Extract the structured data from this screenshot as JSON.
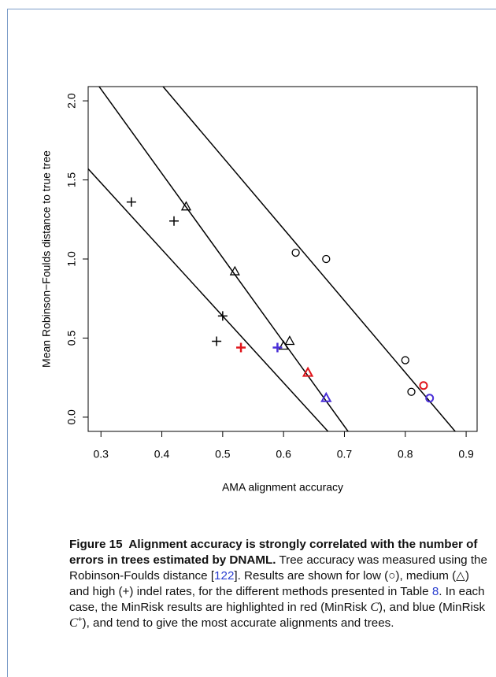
{
  "chart_data": {
    "type": "scatter",
    "xlabel": "AMA alignment accuracy",
    "ylabel": "Mean Robinson−Foulds distance to true tree",
    "xlim": [
      0.279,
      0.918
    ],
    "ylim": [
      -0.09,
      2.09
    ],
    "xticks": [
      0.3,
      0.4,
      0.5,
      0.6,
      0.7,
      0.8,
      0.9
    ],
    "yticks": [
      {
        "value": 0,
        "label": "0.0"
      },
      0.5,
      {
        "value": 1,
        "label": "1.0"
      },
      1.5,
      {
        "value": 2,
        "label": "2.0"
      }
    ],
    "series": [
      {
        "marker": "circle",
        "color": "#000000",
        "x": [
          0.62,
          0.67,
          0.8,
          0.81
        ],
        "y": [
          1.04,
          1.0,
          0.36,
          0.16
        ]
      },
      {
        "marker": "circle",
        "color": "#e0161c",
        "x": [
          0.83
        ],
        "y": [
          0.2
        ]
      },
      {
        "marker": "circle",
        "color": "#4a2fd8",
        "x": [
          0.84
        ],
        "y": [
          0.12
        ]
      },
      {
        "marker": "triangle",
        "color": "#000000",
        "x": [
          0.44,
          0.52,
          0.61,
          0.6
        ],
        "y": [
          1.33,
          0.92,
          0.48,
          0.45
        ]
      },
      {
        "marker": "triangle",
        "color": "#e0161c",
        "x": [
          0.64
        ],
        "y": [
          0.28
        ]
      },
      {
        "marker": "triangle",
        "color": "#4a2fd8",
        "x": [
          0.67
        ],
        "y": [
          0.12
        ]
      },
      {
        "marker": "plus",
        "color": "#000000",
        "x": [
          0.35,
          0.42,
          0.5,
          0.49
        ],
        "y": [
          1.36,
          1.24,
          0.64,
          0.48
        ]
      },
      {
        "marker": "plus",
        "color": "#e0161c",
        "x": [
          0.53
        ],
        "y": [
          0.44
        ]
      },
      {
        "marker": "plus",
        "color": "#4a2fd8",
        "x": [
          0.59
        ],
        "y": [
          0.44
        ]
      }
    ],
    "lines": [
      {
        "x": [
          0.279,
          0.673
        ],
        "y": [
          1.57,
          -0.09
        ]
      },
      {
        "x": [
          0.297,
          0.706
        ],
        "y": [
          2.09,
          -0.09
        ]
      },
      {
        "x": [
          0.402,
          0.882
        ],
        "y": [
          2.09,
          -0.09
        ]
      }
    ]
  },
  "caption": {
    "label": "Figure 15",
    "title": "Alignment accuracy is strongly correlated with the number of errors in trees estimated by DNAML.",
    "body": [
      "Tree accuracy was measured using the Robinson-Foulds distance [",
      "122",
      "]. Results are shown for low (○), medium (△) and high (+) indel rates, for the different methods presented in Table ",
      "8",
      ". In each case, the MinRisk results are highlighted in red (MinRisk ",
      "C",
      "), and blue (MinRisk ",
      "C",
      "+",
      "), and tend to give the most accurate alignments and trees."
    ]
  }
}
